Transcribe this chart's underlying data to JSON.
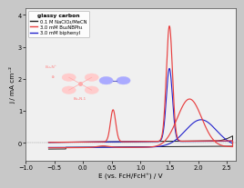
{
  "xlabel": "E (vs. FcH/FcH⁺) / V",
  "ylabel": "j / mA cm⁻²",
  "xlim": [
    -1.0,
    2.65
  ],
  "ylim": [
    -0.55,
    4.2
  ],
  "xticks": [
    -1.0,
    -0.5,
    0.0,
    0.5,
    1.0,
    1.5,
    2.0,
    2.5
  ],
  "yticks": [
    0,
    1,
    2,
    3,
    4
  ],
  "legend_labels": [
    "0.1 M NaClO₄/MeCN",
    "3.0 mM Bu₄NBPh₄",
    "3.0 mM biphenyl"
  ],
  "legend_title": "glassy carbon",
  "line_colors": [
    "#222222",
    "#e84040",
    "#2222cc"
  ],
  "background_color": "#f0f0f0",
  "fig_bg": "#c8c8c8"
}
